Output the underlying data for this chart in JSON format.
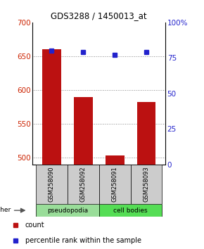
{
  "title": "GDS3288 / 1450013_at",
  "samples": [
    "GSM258090",
    "GSM258092",
    "GSM258091",
    "GSM258093"
  ],
  "count_values": [
    660,
    590,
    503,
    582
  ],
  "percentile_values": [
    80,
    79,
    77,
    79
  ],
  "ylim_left": [
    490,
    700
  ],
  "ylim_right": [
    0,
    100
  ],
  "yticks_left": [
    500,
    550,
    600,
    650,
    700
  ],
  "yticks_right": [
    0,
    25,
    50,
    75,
    100
  ],
  "bar_color": "#bb1111",
  "dot_color": "#2222cc",
  "grid_color": "#888888",
  "label_color_left": "#cc2200",
  "label_color_right": "#2222cc",
  "xlabel_area_color": "#cccccc",
  "pseudo_color": "#99dd99",
  "cell_color": "#55dd55",
  "other_label": "other",
  "legend_count": "count",
  "legend_percentile": "percentile rank within the sample"
}
